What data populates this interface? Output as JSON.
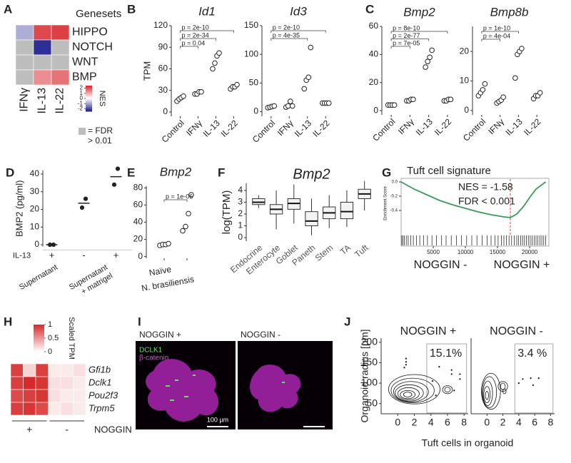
{
  "chart_data": [
    {
      "type": "heatmap",
      "panel": "A",
      "legend_title": "Genesets",
      "rows": [
        "HIPPO",
        "NOTCH",
        "WNT",
        "BMP"
      ],
      "columns": [
        "IFNγ",
        "IL-13",
        "IL-22"
      ],
      "values": [
        [
          -0.9,
          2.1,
          2.2
        ],
        [
          null,
          -2.3,
          null
        ],
        [
          null,
          null,
          null
        ],
        [
          null,
          1.3,
          1.6
        ]
      ],
      "colorbar_title": "NES",
      "clim": [
        -2.5,
        2.5
      ],
      "cticks": [
        2,
        1,
        0,
        -1,
        -2
      ],
      "null_label": [
        "= FDR",
        "> 0.01"
      ],
      "colors": {
        "low": "#1c1c8c",
        "mid": "#ffffff",
        "high": "#d7262b",
        "null": "#bdbdbd"
      }
    },
    {
      "type": "strip",
      "panel": "B",
      "title": "Id1",
      "ylabel": "TPM",
      "categories": [
        "Control",
        "IFNγ",
        "IL-13",
        "IL-22"
      ],
      "values": [
        [
          15,
          18,
          20,
          22
        ],
        [
          25,
          25,
          28,
          28
        ],
        [
          60,
          68,
          78,
          82
        ],
        [
          32,
          35,
          35,
          38
        ]
      ],
      "ylim": [
        -6,
        120
      ],
      "yticks": [
        0,
        30,
        60,
        90,
        120
      ],
      "comparisons": [
        {
          "between": [
            "Control",
            "IL-22"
          ],
          "label": "p = 2e-10"
        },
        {
          "between": [
            "Control",
            "IL-13"
          ],
          "label": "p = 2e-34"
        },
        {
          "between": [
            "Control",
            "IFNγ"
          ],
          "label": "p = 0.04"
        }
      ]
    },
    {
      "type": "strip",
      "title": "Id3",
      "categories": [
        "Control",
        "IFNγ",
        "IL-13",
        "IL-22"
      ],
      "values": [
        [
          7,
          8,
          9,
          10
        ],
        [
          8,
          10,
          18,
          10
        ],
        [
          40,
          55,
          60,
          112
        ],
        [
          15,
          15,
          15,
          15
        ]
      ],
      "ylim": [
        -8,
        150
      ],
      "yticks": [
        0,
        50,
        100,
        150
      ],
      "comparisons": [
        {
          "between": [
            "Control",
            "IL-22"
          ],
          "label": "p = 2e-10"
        },
        {
          "between": [
            "Control",
            "IL-13"
          ],
          "label": "p = 4e-35"
        }
      ]
    },
    {
      "type": "strip",
      "panel": "C",
      "title": "Bmp2",
      "categories": [
        "Control",
        "IFNγ",
        "IL-13",
        "IL-22"
      ],
      "values": [
        [
          4,
          4,
          4,
          4
        ],
        [
          7,
          7,
          8,
          8
        ],
        [
          31,
          35,
          38,
          43
        ],
        [
          7,
          7,
          8,
          8
        ]
      ],
      "ylim": [
        -3,
        60
      ],
      "yticks": [
        0,
        20,
        40,
        60
      ],
      "comparisons": [
        {
          "between": [
            "Control",
            "IL-22"
          ],
          "label": "p = 8e-10"
        },
        {
          "between": [
            "Control",
            "IL-13"
          ],
          "label": "p = 2e-77"
        },
        {
          "between": [
            "Control",
            "IFNγ"
          ],
          "label": "p = 7e-05"
        }
      ]
    },
    {
      "type": "strip",
      "title": "Bmp8b",
      "categories": [
        "Control",
        "IFNγ",
        "IL-13",
        "IL-22"
      ],
      "values": [
        [
          5,
          6,
          7,
          9
        ],
        [
          2.5,
          3,
          3.5,
          4.5
        ],
        [
          11,
          19,
          20,
          21
        ],
        [
          4,
          5,
          5,
          6
        ]
      ],
      "ylim": [
        -1.5,
        28.5
      ],
      "yticks": [
        0,
        10,
        20
      ],
      "comparisons": [
        {
          "between": [
            "Control",
            "IL-13"
          ],
          "label": "p = 1e-10"
        },
        {
          "between": [
            "Control",
            "IFNγ"
          ],
          "label": "p = 4e-04"
        }
      ]
    },
    {
      "type": "strip",
      "panel": "D",
      "ylabel": "BMP2 (pg/ml)",
      "row_label": "IL-13",
      "categories": [
        "+",
        "-",
        "+"
      ],
      "values": [
        [
          0,
          0
        ],
        [
          21,
          26
        ],
        [
          34,
          43
        ]
      ],
      "means": [
        0,
        23.5,
        38.5
      ],
      "group_labels": [
        [
          "Supernatant"
        ],
        [
          "Supernatant",
          "+ matrigel"
        ]
      ],
      "ylim": [
        -1,
        42
      ],
      "yticks": [
        0,
        10,
        20,
        30,
        40
      ]
    },
    {
      "type": "strip",
      "panel": "E",
      "title": "Bmp2",
      "categories": [
        "Naïve",
        "N. brasiliensis"
      ],
      "values": [
        [
          13,
          14,
          14,
          15
        ],
        [
          30,
          35,
          50,
          72
        ]
      ],
      "ylim": [
        -2,
        82
      ],
      "yticks": [
        0,
        20,
        40,
        60,
        80
      ],
      "comparisons": [
        {
          "between": [
            "Naïve",
            "N. brasiliensis"
          ],
          "label": "p = 1e-06"
        }
      ]
    },
    {
      "type": "box",
      "panel": "F",
      "title": "Bmp2",
      "ylabel": "log(TPM)",
      "categories": [
        "Endocrine",
        "Enterocyte",
        "Goblet",
        "Paneth",
        "Stem",
        "TA",
        "Tuft"
      ],
      "boxes": [
        {
          "whislo": 2.5,
          "q1": 2.8,
          "median": 3.0,
          "q3": 3.3,
          "whishi": 3.6
        },
        {
          "whislo": 0.7,
          "q1": 2.0,
          "median": 2.4,
          "q3": 2.8,
          "whishi": 4.0
        },
        {
          "whislo": 1.2,
          "q1": 2.4,
          "median": 2.9,
          "q3": 3.3,
          "whishi": 4.5
        },
        {
          "whislo": 0.2,
          "q1": 1.0,
          "median": 1.4,
          "q3": 2.2,
          "whishi": 3.3
        },
        {
          "whislo": 0.8,
          "q1": 1.6,
          "median": 2.1,
          "q3": 2.6,
          "whishi": 3.6
        },
        {
          "whislo": 0.9,
          "q1": 1.6,
          "median": 2.2,
          "q3": 3.0,
          "whishi": 4.0
        },
        {
          "whislo": 2.3,
          "q1": 3.3,
          "median": 3.7,
          "q3": 4.1,
          "whishi": 4.8
        }
      ],
      "ylim": [
        -0.3,
        4.6
      ],
      "yticks": [
        0,
        1,
        2,
        3,
        4
      ]
    },
    {
      "type": "gsea",
      "panel": "G",
      "title": "Tuft cell signature",
      "ylabel": "Enrichment Score",
      "annotations": [
        "NES = -1.58",
        "FDR < 0.001"
      ],
      "bottom_labels": [
        "NOGGIN -",
        "NOGGIN +"
      ],
      "x": [
        0,
        1000,
        2000,
        4000,
        6000,
        8000,
        10000,
        12000,
        14000,
        16000,
        17000,
        18000,
        19000,
        20000,
        21000,
        22500
      ],
      "values": [
        0,
        -0.05,
        -0.1,
        -0.18,
        -0.26,
        -0.32,
        -0.37,
        -0.42,
        -0.46,
        -0.49,
        -0.5,
        -0.45,
        -0.35,
        -0.22,
        -0.1,
        0
      ],
      "color": "#3a9a5b",
      "peak_x": 17000,
      "hits": [
        100,
        300,
        500,
        800,
        1100,
        1500,
        1900,
        2400,
        2900,
        3500,
        4100,
        4800,
        5500,
        6300,
        7000,
        7800,
        8600,
        9400,
        10200,
        11000,
        11800,
        12600,
        13400,
        14000,
        14600,
        15100,
        15600,
        16000,
        16400,
        16800,
        17200,
        17600,
        18000,
        18300,
        18600,
        18900,
        19200,
        19500,
        19800,
        20100,
        20400,
        20700,
        21000,
        21300,
        21600,
        21900,
        22200,
        22500
      ],
      "xlim": [
        0,
        23000
      ],
      "xticks": [
        5000,
        10000,
        15000,
        20000
      ],
      "ylim": [
        -0.62,
        0.02
      ],
      "yticks": [
        {
          "value": 0,
          "label": "0.0"
        },
        -0.2,
        -0.4
      ]
    },
    {
      "type": "heatmap",
      "panel": "H",
      "rows": [
        "Gfi1b",
        "Dclk1",
        "Pou2f3",
        "Trpm5"
      ],
      "values": [
        [
          0.9,
          0.2,
          0.9,
          0.1,
          0.1,
          0.15
        ],
        [
          0.9,
          1,
          0.95,
          0.15,
          0.15,
          0.1
        ],
        [
          0.85,
          0.9,
          0.95,
          0.15,
          0.1,
          0.1
        ],
        [
          0.9,
          0.95,
          0.85,
          0.1,
          0.15,
          0.1
        ]
      ],
      "column_groups": [
        "+",
        "-"
      ],
      "group_title": "NOGGIN",
      "colorbar_title": "Scaled TPM",
      "clim": [
        0,
        1
      ],
      "cticks": [
        1,
        0.5,
        0
      ],
      "colors": {
        "low": "#ffffff",
        "high": "#d62a2a"
      }
    },
    {
      "type": "image",
      "panel": "I",
      "titles": [
        "NOGGIN +",
        "NOGGIN -"
      ],
      "stains": [
        "DCLK1",
        "β-catenin"
      ],
      "scale_bar": "100 µm"
    },
    {
      "type": "contour",
      "panel": "J",
      "title": "NOGGIN +",
      "ylabel": "Organoid radius [µm]",
      "xlabel": "Tuft cells in organoid",
      "contours": [
        {
          "x": 1.2,
          "y": 72,
          "rx": 0.5,
          "ry": 6
        },
        {
          "x": 1.2,
          "y": 72,
          "rx": 0.9,
          "ry": 10
        },
        {
          "x": 1.3,
          "y": 74,
          "rx": 1.3,
          "ry": 15
        },
        {
          "x": 1.4,
          "y": 76,
          "rx": 1.7,
          "ry": 20
        },
        {
          "x": 1.6,
          "y": 79,
          "rx": 2.1,
          "ry": 25
        },
        {
          "x": 1.8,
          "y": 82,
          "rx": 2.6,
          "ry": 30
        },
        {
          "x": 2,
          "y": 85,
          "rx": 3.1,
          "ry": 36
        },
        {
          "x": 6,
          "y": 84,
          "rx": 0.35,
          "ry": 6
        },
        {
          "x": 6,
          "y": 84,
          "rx": 0.6,
          "ry": 10
        }
      ],
      "points": {
        "x": [
          1,
          1,
          1,
          0.8,
          6.5,
          6.5,
          7.5,
          7.5,
          6.8,
          4.2,
          5,
          4.6
        ],
        "y": [
          160,
          152,
          145,
          138,
          132,
          122,
          122,
          110,
          82,
          105,
          140,
          70
        ]
      },
      "gate": {
        "xlim": [
          3.5,
          8.3
        ],
        "ylim": [
          27,
          196
        ]
      },
      "gate_label": "15.1%",
      "xlim": [
        -2,
        8.5
      ],
      "xticks": [
        0,
        2,
        4,
        6,
        8
      ],
      "ylim": [
        25,
        210
      ],
      "yticks": [
        50,
        100,
        150,
        200
      ]
    },
    {
      "type": "contour",
      "title": "NOGGIN -",
      "contours": [
        {
          "x": 0,
          "y": 70,
          "rx": 0.2,
          "ry": 10
        },
        {
          "x": 0,
          "y": 72,
          "rx": 0.4,
          "ry": 20
        },
        {
          "x": 0.1,
          "y": 75,
          "rx": 0.6,
          "ry": 30
        },
        {
          "x": 0.3,
          "y": 78,
          "rx": 0.9,
          "ry": 38
        },
        {
          "x": 0.5,
          "y": 80,
          "rx": 1.2,
          "ry": 44
        },
        {
          "x": 2,
          "y": 92,
          "rx": 0.3,
          "ry": 8
        },
        {
          "x": 2,
          "y": 92,
          "rx": 0.6,
          "ry": 12
        },
        {
          "x": 2.2,
          "y": 80,
          "rx": 0.2,
          "ry": 6
        }
      ],
      "points": {
        "x": [
          4.5,
          5.5,
          6.5,
          4,
          5.8
        ],
        "y": [
          110,
          112,
          112,
          100,
          95
        ]
      },
      "gate": {
        "xlim": [
          3.5,
          8.3
        ],
        "ylim": [
          27,
          196
        ]
      },
      "gate_label": "3.4 %",
      "xlim": [
        -2,
        8.5
      ],
      "xticks": [
        0,
        2,
        4,
        6,
        8
      ],
      "ylim": [
        25,
        210
      ]
    }
  ]
}
